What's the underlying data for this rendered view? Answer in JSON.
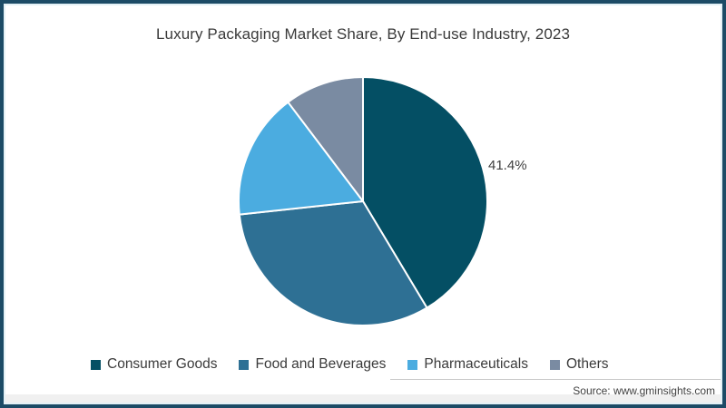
{
  "title": "Luxury Packaging Market Share, By End-use Industry, 2023",
  "source": "Source: www.gminsights.com",
  "percent_label": {
    "text": "41.4%"
  },
  "colors": {
    "frame_border": "#1c4b66",
    "frame_inner_line": "#e4f1f6",
    "title_text": "#3a3a3a",
    "slice_stroke": "#ffffff",
    "footer_strip": "#f0f0f0",
    "source_divider_line": "#c9c9c9"
  },
  "chart_data": {
    "type": "pie",
    "title": "Luxury Packaging Market Share, By End-use Industry, 2023",
    "categories": [
      "Consumer Goods",
      "Food and Beverages",
      "Pharmaceuticals",
      "Others"
    ],
    "values": [
      41.4,
      31.9,
      16.4,
      10.3
    ],
    "colors": [
      "#044f64",
      "#2e7094",
      "#4bace0",
      "#7a8ba2"
    ],
    "unit": "%",
    "start_angle_deg": 0,
    "direction": "clockwise",
    "visible_labels": [
      {
        "category": "Consumer Goods",
        "text": "41.4%"
      }
    ],
    "legend_position": "bottom"
  },
  "legend": {
    "items": [
      {
        "label": "Consumer Goods",
        "color": "#044f64"
      },
      {
        "label": "Food and Beverages",
        "color": "#2e7094"
      },
      {
        "label": "Pharmaceuticals",
        "color": "#4bace0"
      },
      {
        "label": "Others",
        "color": "#7a8ba2"
      }
    ]
  }
}
